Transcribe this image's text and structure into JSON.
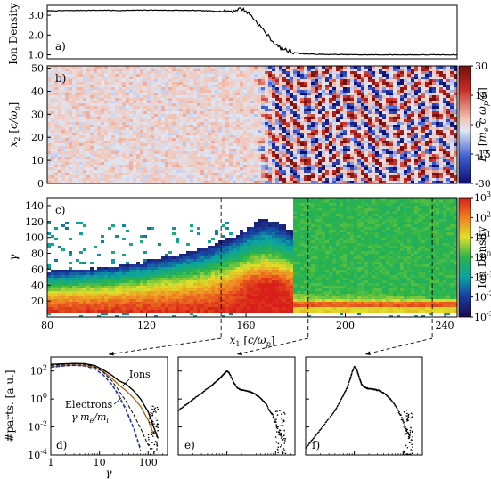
{
  "chart_data": [
    {
      "panel": "a",
      "type": "line",
      "panel_label": "a)",
      "ylabel": "Ion Density",
      "xlim": [
        80,
        245
      ],
      "ylim": [
        0.8,
        3.5
      ],
      "yticks": [
        1.0,
        2.0,
        3.0
      ],
      "ytick_labels": [
        "1.0",
        "2.0",
        "3.0"
      ],
      "x": [
        80,
        90,
        100,
        110,
        120,
        130,
        140,
        150,
        155,
        158,
        160,
        162,
        164,
        166,
        168,
        170,
        172,
        174,
        176,
        178,
        180,
        182,
        185,
        190,
        200,
        210,
        220,
        230,
        240,
        245
      ],
      "y": [
        3.22,
        3.24,
        3.25,
        3.24,
        3.26,
        3.25,
        3.24,
        3.2,
        3.22,
        3.35,
        3.2,
        3.0,
        2.7,
        2.4,
        2.1,
        1.8,
        1.5,
        1.35,
        1.25,
        1.15,
        1.1,
        1.06,
        1.04,
        1.02,
        1.01,
        1.0,
        1.0,
        1.0,
        1.0,
        1.0
      ]
    },
    {
      "panel": "b",
      "type": "heatmap",
      "panel_label": "b)",
      "ylabel": "x_2 [c/ω_p]",
      "xlim": [
        80,
        245
      ],
      "ylim": [
        0,
        51
      ],
      "yticks": [
        0,
        10,
        20,
        30,
        40,
        50
      ],
      "ytick_labels": [
        "0",
        "10",
        "20",
        "30",
        "40",
        "50"
      ],
      "colorbar": {
        "label": "E_2 [m_e c ω_p / e]",
        "range": [
          -30,
          30
        ],
        "ticks": [
          -30,
          -15,
          0,
          15,
          30
        ],
        "tick_labels": [
          "-30",
          "-15",
          "0",
          "15",
          "30"
        ],
        "colormap": [
          "#10106e",
          "#3b5bd0",
          "#dfe6f5",
          "#f2c4b4",
          "#c82a22",
          "#701010"
        ]
      },
      "regions": [
        {
          "from_x": 80,
          "to_x": 160,
          "pattern": "fine speckle noise",
          "amplitude": 8
        },
        {
          "from_x": 160,
          "to_x": 245,
          "pattern": "filamentary Weibel-like structures",
          "amplitude": 30
        }
      ]
    },
    {
      "panel": "c",
      "type": "heatmap",
      "panel_label": "c)",
      "ylabel": "γ",
      "xlabel": "x_1 [c/ω_p]",
      "xlim": [
        80,
        245
      ],
      "ylim": [
        0,
        150
      ],
      "xticks": [
        80,
        120,
        160,
        200,
        240
      ],
      "xtick_labels": [
        "80",
        "120",
        "160",
        "200",
        "240"
      ],
      "yticks": [
        20,
        40,
        60,
        80,
        100,
        120,
        140
      ],
      "ytick_labels": [
        "20",
        "40",
        "60",
        "80",
        "100",
        "120",
        "140"
      ],
      "colorbar": {
        "label": "Ion Density",
        "log_scale": true,
        "range": [
          -3,
          3
        ],
        "ticks": [
          -3,
          -2,
          -1,
          0,
          1,
          2,
          3
        ],
        "tick_labels": [
          "10",
          "10",
          "10",
          "10",
          "10",
          "10",
          "10"
        ],
        "tick_exponents": [
          "-3",
          "-2",
          "-1",
          "0",
          "1",
          "2",
          "3"
        ],
        "colormap": [
          "#1a0a4a",
          "#1a3aa0",
          "#0aa2a2",
          "#2ab44a",
          "#e0e02a",
          "#f08020",
          "#d81f1a"
        ]
      },
      "cut_positions": [
        150,
        185,
        235
      ]
    },
    {
      "panel": "d",
      "type": "line",
      "panel_label": "d)",
      "ylabel": "#parts. [a.u.]",
      "xlabel": "γ",
      "log_x": true,
      "log_y": true,
      "xlim": [
        1,
        250
      ],
      "ylim": [
        0.0001,
        1000
      ],
      "xticks": [
        1,
        10,
        100
      ],
      "xtick_labels": [
        "1",
        "10",
        "100"
      ],
      "yticks": [
        0.0001,
        0.01,
        1,
        100
      ],
      "ytick_labels": [
        "10",
        "10",
        "10",
        "10"
      ],
      "ytick_exponents": [
        "-4",
        "-2",
        "0",
        "2"
      ],
      "annotations": [
        "Ions",
        "Electrons",
        "γ m_e/m_i"
      ],
      "series": [
        {
          "name": "Ions",
          "style": "solid",
          "color": "#000000",
          "x": [
            1,
            2,
            3,
            5,
            8,
            12,
            18,
            25,
            35,
            50,
            70,
            100,
            130,
            160
          ],
          "y": [
            300,
            330,
            350,
            340,
            250,
            120,
            50,
            20,
            12,
            4,
            1,
            0.12,
            0.01,
            0.0015
          ]
        },
        {
          "name": "Electrons",
          "style": "solid",
          "color": "#b06a20",
          "x": [
            1,
            2,
            3,
            5,
            8,
            12,
            18,
            25,
            35,
            50,
            70,
            100,
            130
          ],
          "y": [
            200,
            250,
            270,
            250,
            180,
            90,
            30,
            10,
            4,
            1.2,
            0.3,
            0.03,
            0.003
          ]
        },
        {
          "style": "dashed",
          "color": "#000000",
          "x": [
            1,
            2,
            3,
            5,
            8,
            12,
            18,
            25,
            35,
            50,
            70,
            100
          ],
          "y": [
            250,
            300,
            320,
            300,
            200,
            80,
            20,
            4,
            0.7,
            0.08,
            0.008,
            0.0005
          ]
        },
        {
          "style": "dashed",
          "color": "#3050c0",
          "x": [
            1,
            2,
            3,
            5,
            8,
            12,
            18,
            25,
            35,
            50,
            70
          ],
          "y": [
            200,
            250,
            260,
            230,
            150,
            55,
            12,
            2,
            0.2,
            0.01,
            0.0003
          ]
        },
        {
          "style": "dashed",
          "color": "#1a2a90",
          "x": [
            1,
            2,
            3,
            5,
            8,
            12,
            18,
            25,
            35,
            50,
            70
          ],
          "y": [
            180,
            230,
            250,
            220,
            140,
            50,
            10,
            1.5,
            0.15,
            0.008,
            0.0002
          ]
        }
      ]
    },
    {
      "panel": "e",
      "type": "scatter",
      "panel_label": "e)",
      "log_x": true,
      "log_y": true,
      "xlim": [
        1,
        250
      ],
      "ylim": [
        0.0001,
        1000
      ],
      "x": [
        1,
        1.3,
        1.7,
        2.2,
        3,
        4,
        5,
        6,
        7,
        8,
        9,
        10,
        11,
        12,
        14,
        16,
        18,
        20,
        24,
        28,
        32,
        38,
        45,
        55,
        65,
        80,
        95,
        110,
        125,
        140
      ],
      "y": [
        0.15,
        0.3,
        0.6,
        1.2,
        2.5,
        6,
        10,
        18,
        28,
        45,
        70,
        100,
        80,
        45,
        14,
        7,
        5,
        4.5,
        4,
        3.5,
        3,
        2.2,
        1.5,
        0.8,
        0.4,
        0.1,
        0.03,
        0.01,
        0.003,
        0.0015
      ]
    },
    {
      "panel": "f",
      "type": "scatter",
      "panel_label": "f)",
      "log_x": true,
      "log_y": true,
      "xlim": [
        1,
        250
      ],
      "ylim": [
        0.0001,
        1000
      ],
      "x": [
        1,
        1.3,
        1.7,
        2.2,
        3,
        4,
        5,
        6,
        7,
        8,
        9,
        10,
        11,
        12,
        13,
        14,
        16,
        18,
        20,
        24,
        28,
        32,
        38,
        45,
        55,
        65,
        80,
        95,
        110,
        125,
        140
      ],
      "y": [
        0.0003,
        0.001,
        0.003,
        0.01,
        0.04,
        0.15,
        0.6,
        2,
        6,
        20,
        80,
        200,
        150,
        60,
        25,
        12,
        7,
        6,
        5.5,
        5,
        4.5,
        4,
        3,
        2,
        1,
        0.5,
        0.15,
        0.04,
        0.01,
        0.004,
        0.0015
      ]
    }
  ]
}
